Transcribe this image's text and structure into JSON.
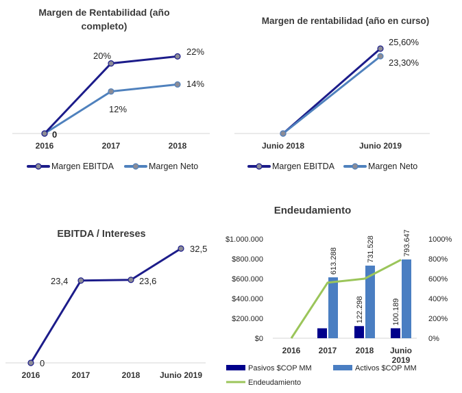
{
  "colors": {
    "ebitda": "#1c1c8a",
    "neto": "#4f81bd",
    "pasivos": "#00008b",
    "activos": "#4a7ec2",
    "endeudamiento": "#9bc55a",
    "marker": "#8c8c96"
  },
  "chart_data": [
    {
      "type": "line",
      "title": "Margen de Rentabilidad (año completo)",
      "title_lines": [
        "Margen de Rentabilidad (año",
        "completo)"
      ],
      "categories": [
        "2016",
        "2017",
        "2018"
      ],
      "series": [
        {
          "name": "Margen EBITDA",
          "values": [
            0,
            20,
            22
          ],
          "labels": [
            "0",
            "20%",
            "22%"
          ]
        },
        {
          "name": "Margen Neto",
          "values": [
            0,
            12,
            14
          ],
          "labels": [
            "",
            "12%",
            "14%"
          ]
        }
      ],
      "ylim": [
        0,
        25
      ]
    },
    {
      "type": "line",
      "title": "Margen de rentabilidad (año en curso)",
      "categories": [
        "Junio 2018",
        "Junio 2019"
      ],
      "series": [
        {
          "name": "Margen EBITDA",
          "values": [
            0,
            25.6
          ],
          "labels": [
            "",
            "25,60%"
          ]
        },
        {
          "name": "Margen Neto",
          "values": [
            0,
            23.3
          ],
          "labels": [
            "",
            "23,30%"
          ]
        }
      ],
      "ylim": [
        0,
        27
      ]
    },
    {
      "type": "line",
      "title": "EBITDA / Intereses",
      "categories": [
        "2016",
        "2017",
        "2018",
        "Junio 2019"
      ],
      "series": [
        {
          "name": "EBITDA / Intereses",
          "values": [
            0,
            23.4,
            23.6,
            32.5
          ],
          "labels": [
            "0",
            "23,4",
            "23,6",
            "32,5"
          ]
        }
      ],
      "ylim": [
        0,
        35
      ]
    },
    {
      "type": "bar",
      "title": "Endeudamiento",
      "categories": [
        "2016",
        "2017",
        "2018",
        "Junio 2019"
      ],
      "category_lines": [
        [
          "2016"
        ],
        [
          "2017"
        ],
        [
          "2018"
        ],
        [
          "Junio",
          "2019"
        ]
      ],
      "series": [
        {
          "name": "Pasivos $COP MM",
          "type": "bar",
          "axis": "left",
          "values": [
            0,
            100000,
            122298,
            100189
          ],
          "labels": [
            "",
            "",
            "122.298",
            "100.189"
          ]
        },
        {
          "name": "Activos $COP MM",
          "type": "bar",
          "axis": "left",
          "values": [
            0,
            613288,
            731528,
            793647
          ],
          "labels": [
            "",
            "613.288",
            "731.528",
            "793.647"
          ]
        },
        {
          "name": "Endeudamiento",
          "type": "line",
          "axis": "right",
          "values": [
            0,
            560,
            600,
            790
          ]
        }
      ],
      "ylim": [
        0,
        1000000
      ],
      "y_ticks": [
        "$0",
        "$200.000",
        "$400.000",
        "$600.000",
        "$800.000",
        "$1.000.000"
      ],
      "y2lim": [
        0,
        1000
      ],
      "y2_ticks": [
        "0%",
        "200%",
        "400%",
        "600%",
        "800%",
        "1000%"
      ]
    }
  ]
}
